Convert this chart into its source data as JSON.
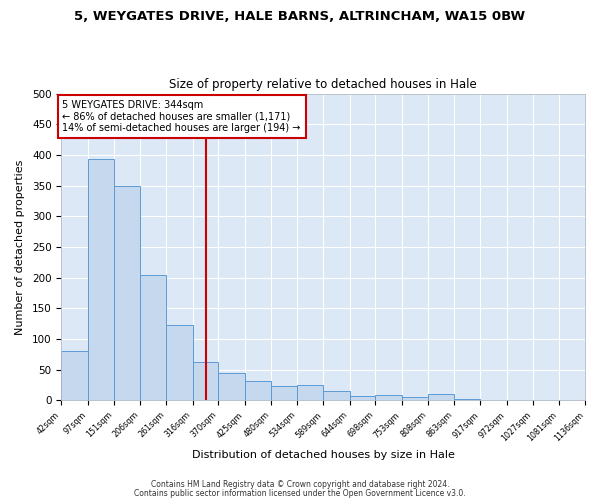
{
  "title_line1": "5, WEYGATES DRIVE, HALE BARNS, ALTRINCHAM, WA15 0BW",
  "title_line2": "Size of property relative to detached houses in Hale",
  "xlabel": "Distribution of detached houses by size in Hale",
  "ylabel": "Number of detached properties",
  "bar_edges": [
    42,
    97,
    151,
    206,
    261,
    316,
    370,
    425,
    480,
    534,
    589,
    644,
    698,
    753,
    808,
    863,
    917,
    972,
    1027,
    1081,
    1136
  ],
  "bar_heights": [
    80,
    393,
    350,
    205,
    123,
    63,
    45,
    31,
    23,
    25,
    15,
    8,
    9,
    5,
    10,
    2,
    1,
    1,
    1,
    1
  ],
  "bar_color": "#c5d8ed",
  "bar_edge_color": "#5b9bd5",
  "plot_bg_color": "#dce8f5",
  "fig_bg_color": "#ffffff",
  "grid_color": "#ffffff",
  "vline_x": 344,
  "vline_color": "#cc0000",
  "annotation_title": "5 WEYGATES DRIVE: 344sqm",
  "annotation_line1": "← 86% of detached houses are smaller (1,171)",
  "annotation_line2": "14% of semi-detached houses are larger (194) →",
  "annotation_box_color": "#ffffff",
  "annotation_box_edge": "#cc0000",
  "ylim": [
    0,
    500
  ],
  "tick_labels": [
    "42sqm",
    "97sqm",
    "151sqm",
    "206sqm",
    "261sqm",
    "316sqm",
    "370sqm",
    "425sqm",
    "480sqm",
    "534sqm",
    "589sqm",
    "644sqm",
    "698sqm",
    "753sqm",
    "808sqm",
    "863sqm",
    "917sqm",
    "972sqm",
    "1027sqm",
    "1081sqm",
    "1136sqm"
  ],
  "footer_line1": "Contains HM Land Registry data © Crown copyright and database right 2024.",
  "footer_line2": "Contains public sector information licensed under the Open Government Licence v3.0."
}
